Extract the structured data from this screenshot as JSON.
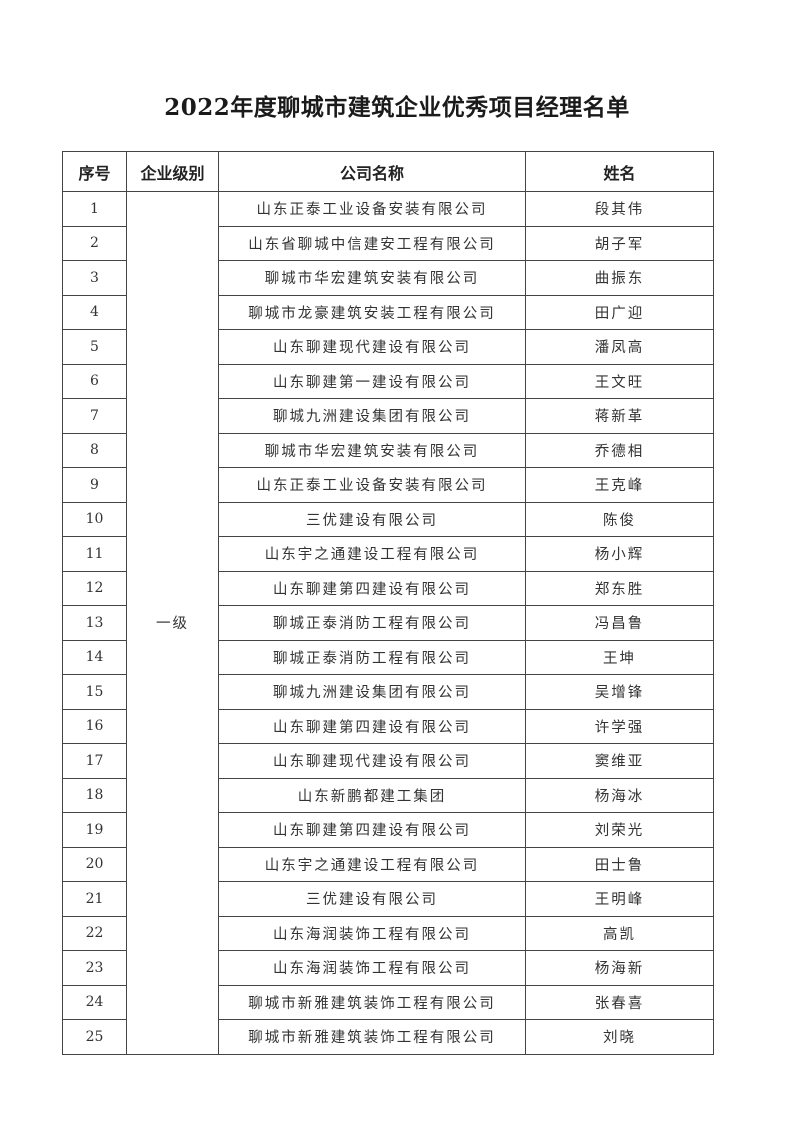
{
  "title": "2022年度聊城市建筑企业优秀项目经理名单",
  "table": {
    "headers": [
      "序号",
      "企业级别",
      "公司名称",
      "姓名"
    ],
    "level": "一级",
    "rows": [
      {
        "no": "1",
        "company": "山东正泰工业设备安装有限公司",
        "name": "段其伟"
      },
      {
        "no": "2",
        "company": "山东省聊城中信建安工程有限公司",
        "name": "胡子军"
      },
      {
        "no": "3",
        "company": "聊城市华宏建筑安装有限公司",
        "name": "曲振东"
      },
      {
        "no": "4",
        "company": "聊城市龙豪建筑安装工程有限公司",
        "name": "田广迎"
      },
      {
        "no": "5",
        "company": "山东聊建现代建设有限公司",
        "name": "潘凤高"
      },
      {
        "no": "6",
        "company": "山东聊建第一建设有限公司",
        "name": "王文旺"
      },
      {
        "no": "7",
        "company": "聊城九洲建设集团有限公司",
        "name": "蒋新革"
      },
      {
        "no": "8",
        "company": "聊城市华宏建筑安装有限公司",
        "name": "乔德相"
      },
      {
        "no": "9",
        "company": "山东正泰工业设备安装有限公司",
        "name": "王克峰"
      },
      {
        "no": "10",
        "company": "三优建设有限公司",
        "name": "陈俊"
      },
      {
        "no": "11",
        "company": "山东宇之通建设工程有限公司",
        "name": "杨小辉"
      },
      {
        "no": "12",
        "company": "山东聊建第四建设有限公司",
        "name": "郑东胜"
      },
      {
        "no": "13",
        "company": "聊城正泰消防工程有限公司",
        "name": "冯昌鲁"
      },
      {
        "no": "14",
        "company": "聊城正泰消防工程有限公司",
        "name": "王坤"
      },
      {
        "no": "15",
        "company": "聊城九洲建设集团有限公司",
        "name": "吴增锋"
      },
      {
        "no": "16",
        "company": "山东聊建第四建设有限公司",
        "name": "许学强"
      },
      {
        "no": "17",
        "company": "山东聊建现代建设有限公司",
        "name": "窦维亚"
      },
      {
        "no": "18",
        "company": "山东新鹏都建工集团",
        "name": "杨海冰"
      },
      {
        "no": "19",
        "company": "山东聊建第四建设有限公司",
        "name": "刘荣光"
      },
      {
        "no": "20",
        "company": "山东宇之通建设工程有限公司",
        "name": "田士鲁"
      },
      {
        "no": "21",
        "company": "三优建设有限公司",
        "name": "王明峰"
      },
      {
        "no": "22",
        "company": "山东海润装饰工程有限公司",
        "name": "高凯"
      },
      {
        "no": "23",
        "company": "山东海润装饰工程有限公司",
        "name": "杨海新"
      },
      {
        "no": "24",
        "company": "聊城市新雅建筑装饰工程有限公司",
        "name": "张春喜"
      },
      {
        "no": "25",
        "company": "聊城市新雅建筑装饰工程有限公司",
        "name": "刘晓"
      }
    ]
  }
}
